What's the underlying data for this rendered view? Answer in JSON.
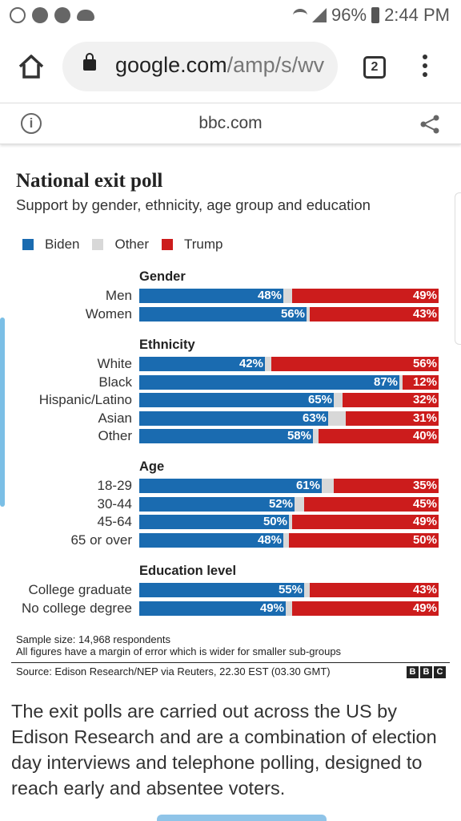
{
  "status_bar": {
    "battery": "96%",
    "time": "2:44 PM"
  },
  "browser": {
    "url_host": "google.com",
    "url_rest": "/amp/s/wv",
    "tab_count": "2"
  },
  "amp_header": {
    "domain": "bbc.com",
    "info_symbol": "i"
  },
  "chart_data": {
    "type": "bar",
    "title": "National exit poll",
    "subtitle": "Support by gender, ethnicity, age group and education",
    "legend": [
      "Biden",
      "Other",
      "Trump"
    ],
    "colors": {
      "Biden": "#1a6bb0",
      "Other": "#d8d8d8",
      "Trump": "#cc1c1c"
    },
    "groups": [
      {
        "title": "Gender",
        "rows": [
          {
            "label": "Men",
            "biden": 48,
            "trump": 49
          },
          {
            "label": "Women",
            "biden": 56,
            "trump": 43
          }
        ]
      },
      {
        "title": "Ethnicity",
        "rows": [
          {
            "label": "White",
            "biden": 42,
            "trump": 56
          },
          {
            "label": "Black",
            "biden": 87,
            "trump": 12
          },
          {
            "label": "Hispanic/Latino",
            "biden": 65,
            "trump": 32
          },
          {
            "label": "Asian",
            "biden": 63,
            "trump": 31
          },
          {
            "label": "Other",
            "biden": 58,
            "trump": 40
          }
        ]
      },
      {
        "title": "Age",
        "rows": [
          {
            "label": "18-29",
            "biden": 61,
            "trump": 35
          },
          {
            "label": "30-44",
            "biden": 52,
            "trump": 45
          },
          {
            "label": "45-64",
            "biden": 50,
            "trump": 49
          },
          {
            "label": "65 or over",
            "biden": 48,
            "trump": 50
          }
        ]
      },
      {
        "title": "Education level",
        "rows": [
          {
            "label": "College graduate",
            "biden": 55,
            "trump": 43
          },
          {
            "label": "No college degree",
            "biden": 49,
            "trump": 49
          }
        ]
      }
    ],
    "xlim": [
      0,
      100
    ]
  },
  "notes": {
    "sample": "Sample size: 14,968 respondents",
    "margin": "All figures have a margin of error which is wider for smaller sub-groups"
  },
  "source": "Source: Edison Research/NEP via Reuters, 22.30 EST (03.30 GMT)",
  "bbc_logo": [
    "B",
    "B",
    "C"
  ],
  "article_paragraph": "The exit polls are carried out across the US by Edison Research and are a combination of election day interviews and telephone polling, designed to reach early and absentee voters."
}
